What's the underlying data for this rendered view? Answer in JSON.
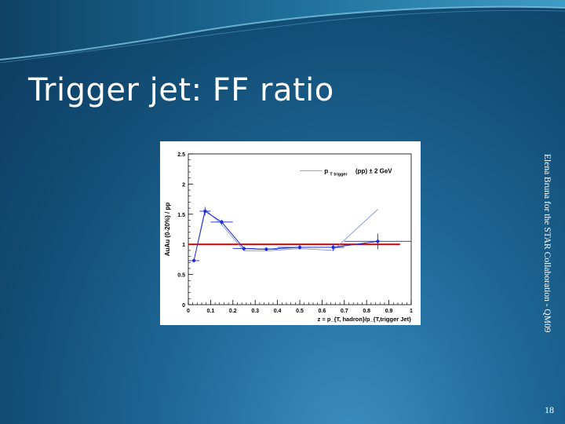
{
  "slide": {
    "title": "Trigger jet: FF ratio",
    "side_text": "Elena Bruna for the STAR Collaboration - QM09",
    "page_number": "18",
    "colors": {
      "background": "#124c74",
      "title": "#ffffff"
    }
  },
  "chart_data": {
    "type": "line",
    "title": "",
    "xlabel": "z = p_{T, hadron}/p_{T,trigger Jet}",
    "ylabel": "AuAu (0-20%) / pp",
    "xlim": [
      0,
      1
    ],
    "ylim": [
      0,
      2.5
    ],
    "x_ticks": [
      "0",
      "0.1",
      "0.2",
      "0.3",
      "0.4",
      "0.5",
      "0.6",
      "0.7",
      "0.8",
      "0.9",
      "1"
    ],
    "y_ticks": [
      "0",
      "0.5",
      "1",
      "1.5",
      "2",
      "2.5"
    ],
    "legend": {
      "label_main": "p",
      "label_sub": "T trigger",
      "label_rest": "(pp) ± 2 GeV",
      "placement": "top-right"
    },
    "reference_line": {
      "y": 1,
      "color": "#cc0000"
    },
    "series": [
      {
        "color": "#1a2bd6",
        "x": [
          0.025,
          0.075,
          0.15,
          0.25,
          0.35,
          0.5,
          0.65,
          0.85
        ],
        "y": [
          0.73,
          1.55,
          1.37,
          0.93,
          0.92,
          0.95,
          0.95,
          1.05
        ],
        "xerr": [
          0.025,
          0.025,
          0.05,
          0.05,
          0.05,
          0.1,
          0.05,
          0.15
        ],
        "yerr": [
          0.03,
          0.07,
          0.04,
          0.03,
          0.03,
          0.04,
          0.06,
          0.13
        ]
      },
      {
        "color": "#6f86d8",
        "x": [
          0.025,
          0.075,
          0.15,
          0.25,
          0.35,
          0.5,
          0.65,
          0.85
        ],
        "y": [
          0.73,
          1.58,
          1.33,
          0.89,
          0.89,
          0.93,
          0.9,
          1.58
        ]
      }
    ]
  }
}
